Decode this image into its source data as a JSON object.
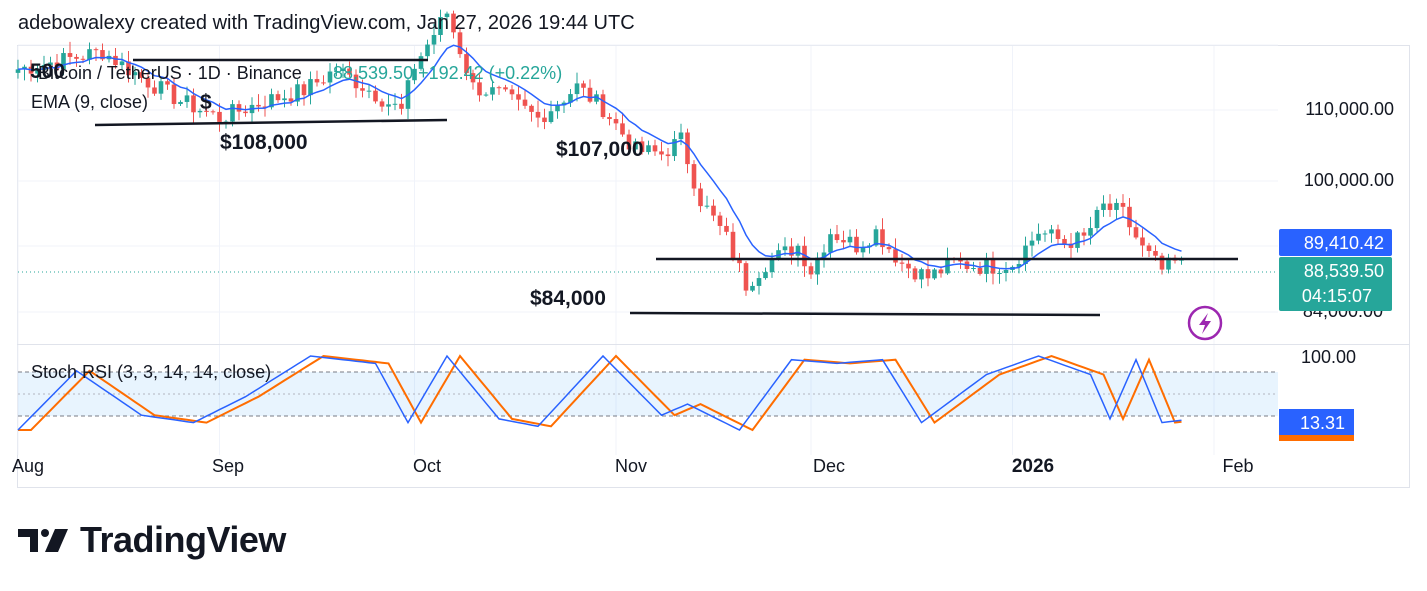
{
  "header": {
    "caption": "adebowalexy created with TradingView.com, Jan 27, 2026 19:44 UTC"
  },
  "legend": {
    "pair_symbol": "Bitcoin / TetherUS · 1D · Binance",
    "price_change": "88,539.50 +192.42 (+0.22%)",
    "indicator": "EMA (9, close)",
    "overlay_digits": "500",
    "overlay_char": "$"
  },
  "price_axis": {
    "ticks": [
      "110,000.00",
      "100,000.00",
      "84,000.00"
    ]
  },
  "price_badges": {
    "ema": "89,410.42",
    "last_price": "88,539.50",
    "countdown": "04:15:07",
    "ema_color": "#2962ff",
    "last_color": "#26a69a"
  },
  "annotations": [
    "$108,000",
    "$107,000",
    "$84,000"
  ],
  "rsi_panel": {
    "label": "Stoch RSI (3, 3, 14, 14, close)",
    "top_tick": "100.00",
    "value": "13.31",
    "k_color": "#2962ff",
    "d_color": "#ff6d00"
  },
  "time_axis": {
    "labels": [
      "Aug",
      "Sep",
      "Oct",
      "Nov",
      "Dec",
      "2026",
      "Feb"
    ]
  },
  "brand": {
    "name": "TradingView"
  },
  "chart_data": {
    "type": "candlestick",
    "title": "Bitcoin / TetherUS · 1D · Binance",
    "interval": "1D",
    "last_close": 88539.5,
    "change": 192.42,
    "change_pct": 0.22,
    "ema9": 89410.42,
    "y_axis": {
      "ticks": [
        110000,
        100000,
        84000
      ],
      "range": [
        81000,
        118000
      ]
    },
    "x_axis_labels": [
      "Aug",
      "Sep",
      "Oct",
      "Nov",
      "Dec",
      "2026",
      "Feb"
    ],
    "up_color": "#26a69a",
    "down_color": "#ef5350",
    "trendlines": [
      {
        "label": "",
        "from": [
          "Aug 1",
          116000
        ],
        "to": [
          "Oct 1",
          116500
        ]
      },
      {
        "label": "$108,000",
        "from": [
          "Aug 13",
          108000
        ],
        "to": [
          "Oct 10",
          108700
        ]
      },
      {
        "label": "",
        "from": [
          "Nov 13",
          89200
        ],
        "to": [
          "Jan 31",
          89200
        ]
      },
      {
        "label": "$84,000",
        "from": [
          "Nov 13",
          84000
        ],
        "to": [
          "Jan 23",
          83800
        ]
      }
    ],
    "price_path": [
      [
        "Aug 1",
        115500
      ],
      [
        "Aug 8",
        116800
      ],
      [
        "Aug 14",
        118000
      ],
      [
        "Aug 20",
        114300
      ],
      [
        "Aug 26",
        111000
      ],
      [
        "Sep 1",
        108600
      ],
      [
        "Sep 8",
        111000
      ],
      [
        "Sep 14",
        112500
      ],
      [
        "Sep 19",
        115500
      ],
      [
        "Sep 25",
        112000
      ],
      [
        "Sep 29",
        109500
      ],
      [
        "Oct 1",
        116000
      ],
      [
        "Oct 6",
        123500
      ],
      [
        "Oct 10",
        113000
      ],
      [
        "Oct 14",
        112000
      ],
      [
        "Oct 20",
        108500
      ],
      [
        "Oct 26",
        113000
      ],
      [
        "Oct 30",
        110000
      ],
      [
        "Nov 4",
        104000
      ],
      [
        "Nov 8",
        103500
      ],
      [
        "Nov 11",
        105500
      ],
      [
        "Nov 14",
        97000
      ],
      [
        "Nov 18",
        91500
      ],
      [
        "Nov 21",
        85000
      ],
      [
        "Nov 24",
        88000
      ],
      [
        "Nov 29",
        90500
      ],
      [
        "Dec 1",
        87000
      ],
      [
        "Dec 4",
        92500
      ],
      [
        "Dec 8",
        90500
      ],
      [
        "Dec 11",
        92500
      ],
      [
        "Dec 15",
        88000
      ],
      [
        "Dec 19",
        86000
      ],
      [
        "Dec 23",
        88000
      ],
      [
        "Dec 28",
        87500
      ],
      [
        "Jan 1",
        88000
      ],
      [
        "Jan 5",
        92500
      ],
      [
        "Jan 9",
        91000
      ],
      [
        "Jan 12",
        91500
      ],
      [
        "Jan 15",
        96000
      ],
      [
        "Jan 18",
        95000
      ],
      [
        "Jan 21",
        90000
      ],
      [
        "Jan 24",
        87000
      ],
      [
        "Jan 27",
        88539.5
      ]
    ],
    "stoch_rsi": {
      "k": 13.31,
      "levels": [
        80,
        20
      ],
      "top_tick": 100,
      "k_path": [
        [
          "Aug 1",
          0
        ],
        [
          "Aug 10",
          80
        ],
        [
          "Aug 20",
          20
        ],
        [
          "Aug 28",
          10
        ],
        [
          "Sep 5",
          45
        ],
        [
          "Sep 15",
          100
        ],
        [
          "Sep 25",
          90
        ],
        [
          "Sep 30",
          10
        ],
        [
          "Oct 6",
          100
        ],
        [
          "Oct 14",
          15
        ],
        [
          "Oct 20",
          5
        ],
        [
          "Oct 30",
          100
        ],
        [
          "Nov 8",
          20
        ],
        [
          "Nov 12",
          35
        ],
        [
          "Nov 20",
          0
        ],
        [
          "Nov 28",
          95
        ],
        [
          "Dec 5",
          90
        ],
        [
          "Dec 12",
          95
        ],
        [
          "Dec 18",
          10
        ],
        [
          "Dec 28",
          75
        ],
        [
          "Jan 5",
          100
        ],
        [
          "Jan 13",
          75
        ],
        [
          "Jan 16",
          15
        ],
        [
          "Jan 20",
          95
        ],
        [
          "Jan 24",
          10
        ],
        [
          "Jan 27",
          13.31
        ]
      ]
    }
  }
}
